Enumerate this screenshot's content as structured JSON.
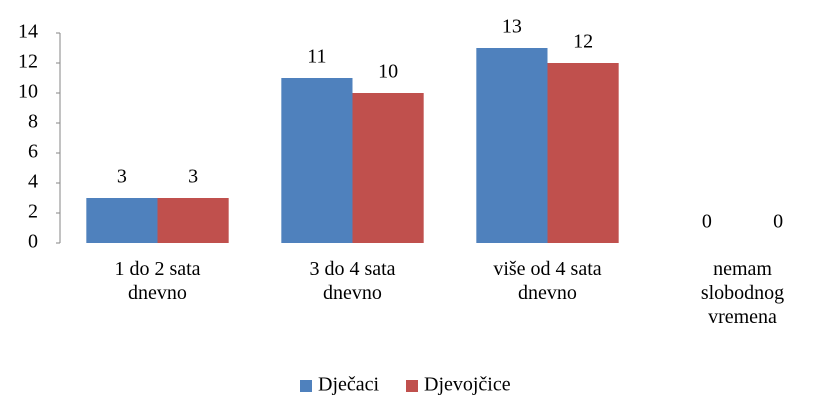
{
  "chart_data": {
    "type": "bar",
    "categories": [
      "1 do 2 sata dnevno",
      "3 do 4 sata dnevno",
      "više od 4 sata dnevno",
      "nemam slobodnog vremena"
    ],
    "series": [
      {
        "name": "Dječaci",
        "color": "#4f81bd",
        "values": [
          3,
          11,
          13,
          0
        ]
      },
      {
        "name": "Djevojčice",
        "color": "#c0504d",
        "values": [
          3,
          10,
          12,
          0
        ]
      }
    ],
    "ylim": [
      0,
      14
    ],
    "yticks": [
      0,
      2,
      4,
      6,
      8,
      10,
      12,
      14
    ],
    "grid": false,
    "legend": "bottom"
  }
}
